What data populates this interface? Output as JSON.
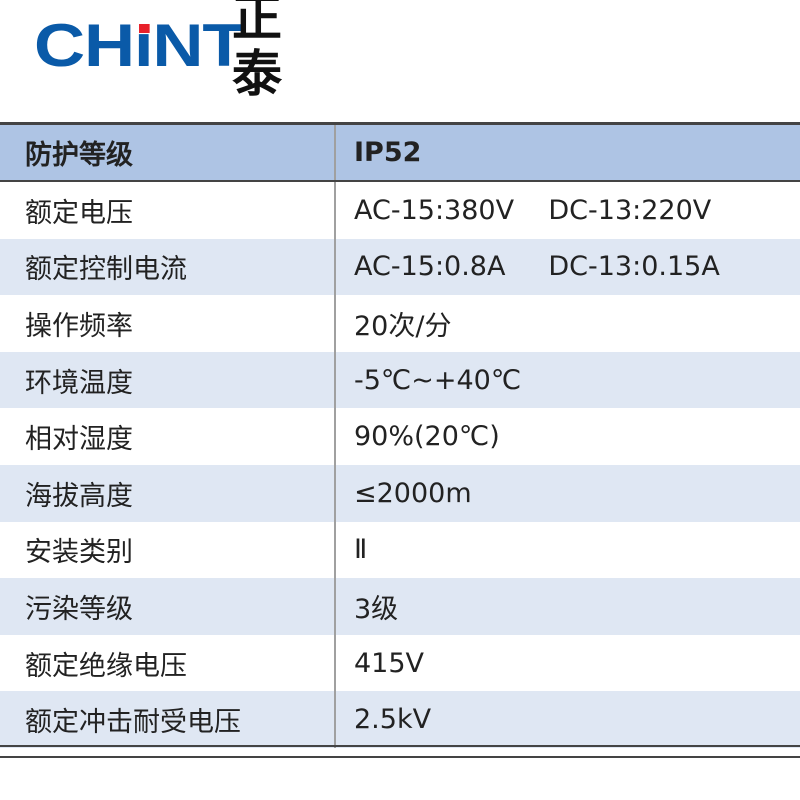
{
  "logo": {
    "brand_en": "CHNT",
    "brand_cn": "正泰",
    "colors": {
      "blue": "#0a5aa8",
      "red": "#e8202a"
    }
  },
  "table": {
    "header": {
      "label": "防护等级",
      "value": "IP52"
    },
    "rows": [
      {
        "label": "额定电压",
        "value": "AC-15:380V    DC-13:220V"
      },
      {
        "label": "额定控制电流",
        "value": "AC-15:0.8A     DC-13:0.15A"
      },
      {
        "label": "操作频率",
        "value": "20次/分"
      },
      {
        "label": "环境温度",
        "value": "-5℃~+40℃"
      },
      {
        "label": "相对湿度",
        "value": "90%(20℃)"
      },
      {
        "label": "海拔高度",
        "value": "≤2000m"
      },
      {
        "label": "安装类别",
        "value": "Ⅱ"
      },
      {
        "label": "污染等级",
        "value": "3级"
      },
      {
        "label": "额定绝缘电压",
        "value": "415V"
      },
      {
        "label": "额定冲击耐受电压",
        "value": "2.5kV"
      }
    ]
  }
}
